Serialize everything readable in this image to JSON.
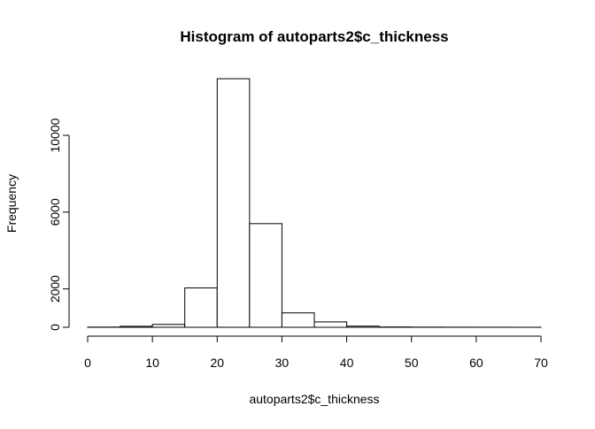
{
  "chart_data": {
    "type": "bar",
    "title": "Histogram of autoparts2$c_thickness",
    "xlabel": "autoparts2$c_thickness",
    "ylabel": "Frequency",
    "bin_edges": [
      0,
      5,
      10,
      15,
      20,
      25,
      30,
      35,
      40,
      45,
      50,
      55,
      60,
      65,
      70
    ],
    "values": [
      10,
      50,
      150,
      2050,
      12950,
      5400,
      750,
      280,
      60,
      15,
      8,
      5,
      3,
      2
    ],
    "xlim": [
      0,
      70
    ],
    "ylim": [
      0,
      12950
    ],
    "x_ticks": [
      0,
      10,
      20,
      30,
      40,
      50,
      60,
      70
    ],
    "y_ticks": [
      0,
      2000,
      6000,
      10000
    ],
    "grid": false,
    "legend": "none"
  }
}
